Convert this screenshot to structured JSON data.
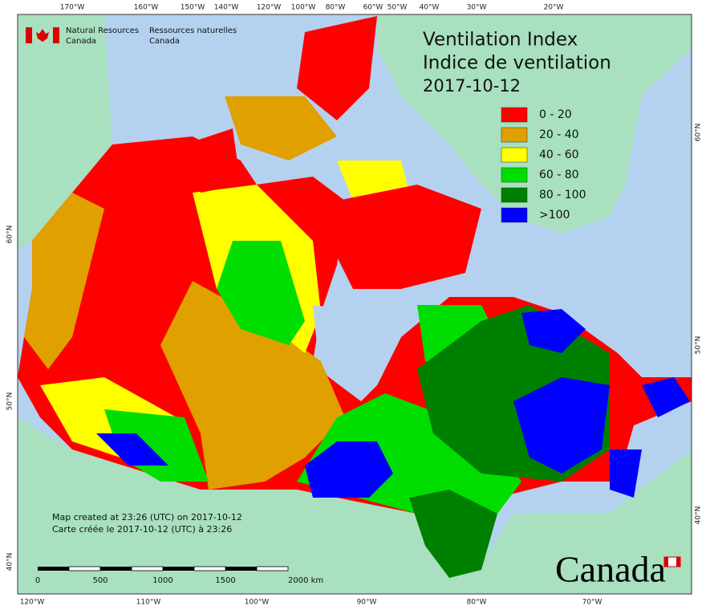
{
  "header": {
    "title": "Ventilation Index",
    "title_fr": "Indice de ventilation",
    "date": "2017-10-12"
  },
  "legend": [
    {
      "label": "0 - 20",
      "color": "#ff0000"
    },
    {
      "label": "20 - 40",
      "color": "#e0a000"
    },
    {
      "label": "40 - 60",
      "color": "#ffff00"
    },
    {
      "label": "60 - 80",
      "color": "#00dd00"
    },
    {
      "label": "80 - 100",
      "color": "#008000"
    },
    {
      "label": ">100",
      "color": "#0000ff"
    }
  ],
  "credit": {
    "en": [
      "Natural Resources",
      "Canada"
    ],
    "fr": [
      "Ressources naturelles",
      "Canada"
    ]
  },
  "notes": [
    "Map created at 23:26 (UTC) on 2017-10-12",
    "Carte créée le 2017-10-12 (UTC) à 23:26"
  ],
  "wordmark": "Canada",
  "scale": [
    "0",
    "500",
    "1000",
    "1500",
    "2000 km"
  ],
  "graticule": {
    "top": [
      "170°W",
      "160°W",
      "150°W",
      "140°W",
      "120°W",
      "100°W",
      "80°W",
      "60°W",
      "50°W",
      "40°W",
      "30°W",
      "20°W"
    ],
    "bottom": [
      "120°W",
      "110°W",
      "100°W",
      "90°W",
      "80°W",
      "70°W"
    ],
    "left": [
      "60°N",
      "50°N",
      "40°N"
    ],
    "right": [
      "60°N",
      "50°N",
      "40°N"
    ]
  }
}
